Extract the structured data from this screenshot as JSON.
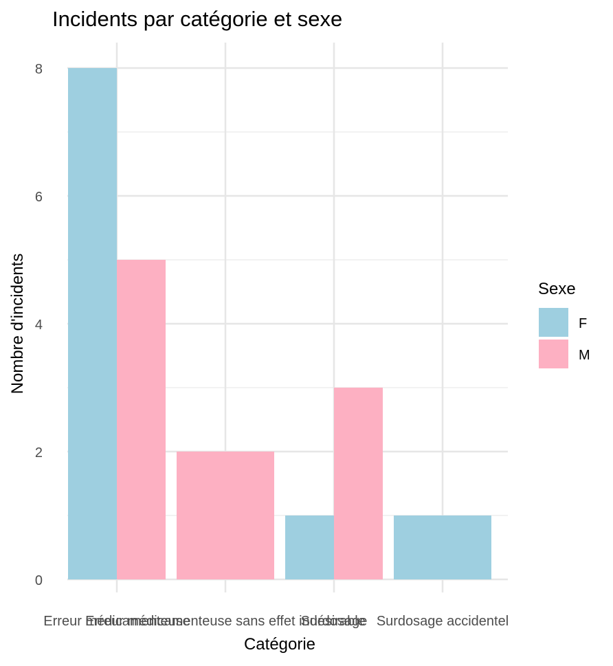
{
  "chart_data": {
    "type": "bar",
    "title": "Incidents par catégorie et sexe",
    "xlabel": "Catégorie",
    "ylabel": "Nombre d'incidents",
    "categories": [
      "Erreur médicamenteuse",
      "Erreur médicamenteuse sans effet indésirable",
      "Surdosage",
      "Surdosage accidentel"
    ],
    "y_ticks": [
      0,
      2,
      4,
      6,
      8
    ],
    "ylim": [
      0,
      8.5
    ],
    "grid": true,
    "legend": {
      "title": "Sexe",
      "position": "right"
    },
    "series": [
      {
        "name": "F",
        "color": "#9ECFE0",
        "values": [
          8,
          0,
          1,
          1
        ]
      },
      {
        "name": "M",
        "color": "#FDB0C2",
        "values": [
          5,
          2,
          3,
          0
        ]
      }
    ]
  }
}
